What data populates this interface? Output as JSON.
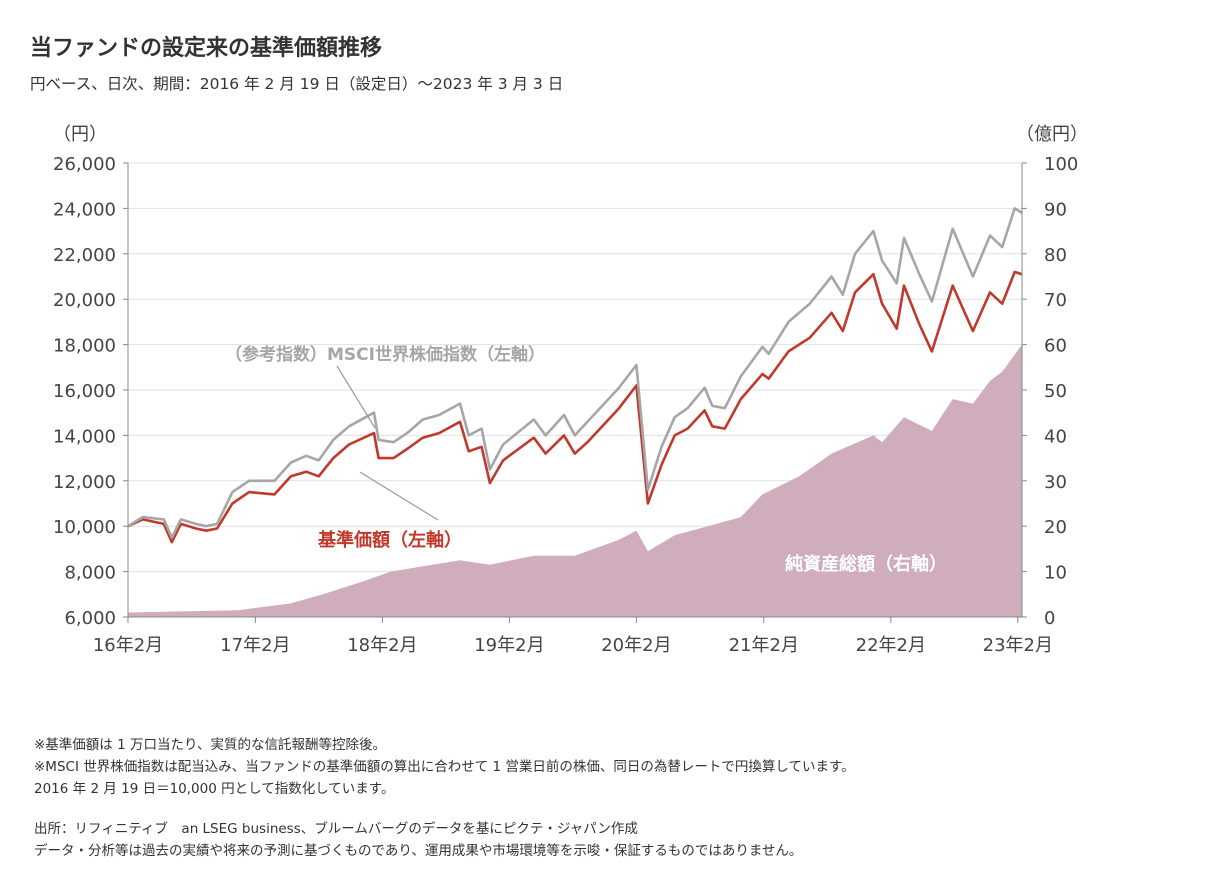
{
  "header": {
    "title": "当ファンドの設定来の基準価額推移",
    "subtitle": "円ベース、日次、期間：2016 年 2 月 19 日（設定日）～2023 年 3 月 3 日"
  },
  "chart_data": {
    "type": "line",
    "left_axis": {
      "unit": "（円）",
      "min": 6000,
      "max": 26000,
      "ticks": [
        "6,000",
        "8,000",
        "10,000",
        "12,000",
        "14,000",
        "16,000",
        "18,000",
        "20,000",
        "22,000",
        "24,000",
        "26,000"
      ]
    },
    "right_axis": {
      "unit": "（億円）",
      "min": 0,
      "max": 100,
      "ticks": [
        "0",
        "10",
        "20",
        "30",
        "40",
        "50",
        "60",
        "70",
        "80",
        "90",
        "100"
      ]
    },
    "x_axis": {
      "min": "2016-02-19",
      "max": "2023-03-03",
      "ticks": [
        "16年2月",
        "17年2月",
        "18年2月",
        "19年2月",
        "20年2月",
        "21年2月",
        "22年2月",
        "23年2月"
      ]
    },
    "grid": "horizontal",
    "series": [
      {
        "name": "基準価額（左軸）",
        "axis": "left",
        "kind": "line",
        "color": "#c0392b",
        "points": [
          [
            "2016-02-19",
            10000
          ],
          [
            "2016-04-01",
            10300
          ],
          [
            "2016-06-01",
            10100
          ],
          [
            "2016-06-24",
            9300
          ],
          [
            "2016-07-20",
            10100
          ],
          [
            "2016-09-01",
            9900
          ],
          [
            "2016-10-01",
            9800
          ],
          [
            "2016-11-01",
            9900
          ],
          [
            "2016-12-15",
            11000
          ],
          [
            "2017-02-01",
            11500
          ],
          [
            "2017-04-15",
            11400
          ],
          [
            "2017-06-01",
            12200
          ],
          [
            "2017-07-15",
            12400
          ],
          [
            "2017-08-20",
            12200
          ],
          [
            "2017-10-01",
            13000
          ],
          [
            "2017-11-15",
            13600
          ],
          [
            "2018-01-26",
            14100
          ],
          [
            "2018-02-08",
            13000
          ],
          [
            "2018-03-23",
            13000
          ],
          [
            "2018-05-01",
            13400
          ],
          [
            "2018-06-15",
            13900
          ],
          [
            "2018-08-01",
            14100
          ],
          [
            "2018-09-30",
            14600
          ],
          [
            "2018-10-25",
            13300
          ],
          [
            "2018-12-01",
            13500
          ],
          [
            "2018-12-25",
            11900
          ],
          [
            "2019-02-01",
            12900
          ],
          [
            "2019-04-30",
            13900
          ],
          [
            "2019-06-03",
            13200
          ],
          [
            "2019-07-26",
            14000
          ],
          [
            "2019-08-26",
            13200
          ],
          [
            "2019-10-01",
            13700
          ],
          [
            "2019-12-31",
            15200
          ],
          [
            "2020-02-19",
            16200
          ],
          [
            "2020-03-23",
            11000
          ],
          [
            "2020-05-01",
            12700
          ],
          [
            "2020-06-08",
            14000
          ],
          [
            "2020-07-15",
            14300
          ],
          [
            "2020-09-02",
            15100
          ],
          [
            "2020-09-24",
            14400
          ],
          [
            "2020-10-30",
            14300
          ],
          [
            "2020-12-15",
            15600
          ],
          [
            "2021-02-15",
            16700
          ],
          [
            "2021-03-05",
            16500
          ],
          [
            "2021-05-01",
            17700
          ],
          [
            "2021-07-01",
            18300
          ],
          [
            "2021-09-02",
            19400
          ],
          [
            "2021-10-04",
            18600
          ],
          [
            "2021-11-08",
            20300
          ],
          [
            "2021-12-31",
            21100
          ],
          [
            "2022-01-25",
            19800
          ],
          [
            "2022-03-08",
            18700
          ],
          [
            "2022-03-29",
            20600
          ],
          [
            "2022-05-12",
            18900
          ],
          [
            "2022-06-17",
            17700
          ],
          [
            "2022-08-16",
            20600
          ],
          [
            "2022-10-13",
            18600
          ],
          [
            "2022-12-01",
            20300
          ],
          [
            "2023-01-05",
            19800
          ],
          [
            "2023-02-10",
            21200
          ],
          [
            "2023-03-03",
            21100
          ]
        ]
      },
      {
        "name": "（参考指数）MSCI世界株価指数（左軸）",
        "axis": "left",
        "kind": "line",
        "color": "#a6a6a6",
        "points": [
          [
            "2016-02-19",
            10000
          ],
          [
            "2016-04-01",
            10400
          ],
          [
            "2016-06-01",
            10300
          ],
          [
            "2016-06-24",
            9500
          ],
          [
            "2016-07-20",
            10300
          ],
          [
            "2016-09-01",
            10100
          ],
          [
            "2016-10-01",
            10000
          ],
          [
            "2016-11-01",
            10100
          ],
          [
            "2016-12-15",
            11500
          ],
          [
            "2017-02-01",
            12000
          ],
          [
            "2017-04-15",
            12000
          ],
          [
            "2017-06-01",
            12800
          ],
          [
            "2017-07-15",
            13100
          ],
          [
            "2017-08-20",
            12900
          ],
          [
            "2017-10-01",
            13800
          ],
          [
            "2017-11-15",
            14400
          ],
          [
            "2018-01-26",
            15000
          ],
          [
            "2018-02-08",
            13800
          ],
          [
            "2018-03-23",
            13700
          ],
          [
            "2018-05-01",
            14100
          ],
          [
            "2018-06-15",
            14700
          ],
          [
            "2018-08-01",
            14900
          ],
          [
            "2018-09-30",
            15400
          ],
          [
            "2018-10-25",
            14000
          ],
          [
            "2018-12-01",
            14300
          ],
          [
            "2018-12-25",
            12500
          ],
          [
            "2019-02-01",
            13600
          ],
          [
            "2019-04-30",
            14700
          ],
          [
            "2019-06-03",
            14000
          ],
          [
            "2019-07-26",
            14900
          ],
          [
            "2019-08-26",
            14000
          ],
          [
            "2019-10-01",
            14600
          ],
          [
            "2019-12-31",
            16100
          ],
          [
            "2020-02-19",
            17100
          ],
          [
            "2020-03-23",
            11600
          ],
          [
            "2020-05-01",
            13500
          ],
          [
            "2020-06-08",
            14800
          ],
          [
            "2020-07-15",
            15200
          ],
          [
            "2020-09-02",
            16100
          ],
          [
            "2020-09-24",
            15300
          ],
          [
            "2020-10-30",
            15200
          ],
          [
            "2020-12-15",
            16600
          ],
          [
            "2021-02-15",
            17900
          ],
          [
            "2021-03-05",
            17600
          ],
          [
            "2021-05-01",
            19000
          ],
          [
            "2021-07-01",
            19800
          ],
          [
            "2021-09-02",
            21000
          ],
          [
            "2021-10-04",
            20200
          ],
          [
            "2021-11-08",
            22000
          ],
          [
            "2021-12-31",
            23000
          ],
          [
            "2022-01-25",
            21700
          ],
          [
            "2022-03-08",
            20700
          ],
          [
            "2022-03-29",
            22700
          ],
          [
            "2022-05-12",
            21100
          ],
          [
            "2022-06-17",
            19900
          ],
          [
            "2022-08-16",
            23100
          ],
          [
            "2022-10-13",
            21000
          ],
          [
            "2022-12-01",
            22800
          ],
          [
            "2023-01-05",
            22300
          ],
          [
            "2023-02-10",
            24000
          ],
          [
            "2023-03-03",
            23800
          ]
        ]
      },
      {
        "name": "純資産総額（右軸）",
        "axis": "right",
        "kind": "area",
        "color": "#cfadbd",
        "points": [
          [
            "2016-02-19",
            1.0
          ],
          [
            "2016-12-31",
            1.5
          ],
          [
            "2017-06-01",
            3.0
          ],
          [
            "2017-09-01",
            5.0
          ],
          [
            "2017-12-31",
            8.0
          ],
          [
            "2018-03-15",
            10.0
          ],
          [
            "2018-06-01",
            11.0
          ],
          [
            "2018-09-30",
            12.5
          ],
          [
            "2018-12-25",
            11.5
          ],
          [
            "2019-04-30",
            13.5
          ],
          [
            "2019-08-26",
            13.5
          ],
          [
            "2019-12-31",
            17.0
          ],
          [
            "2020-02-19",
            19.0
          ],
          [
            "2020-03-23",
            14.5
          ],
          [
            "2020-06-08",
            18.0
          ],
          [
            "2020-12-15",
            22.0
          ],
          [
            "2021-02-15",
            27.0
          ],
          [
            "2021-06-01",
            31.0
          ],
          [
            "2021-09-02",
            36.0
          ],
          [
            "2021-12-31",
            40.0
          ],
          [
            "2022-01-25",
            38.5
          ],
          [
            "2022-03-29",
            44.0
          ],
          [
            "2022-06-17",
            41.0
          ],
          [
            "2022-08-16",
            48.0
          ],
          [
            "2022-10-13",
            47.0
          ],
          [
            "2022-12-01",
            52.0
          ],
          [
            "2023-01-05",
            54.0
          ],
          [
            "2023-03-03",
            60.0
          ]
        ]
      }
    ],
    "annotations": [
      "（参考指数）MSCI世界株価指数（左軸）",
      "基準価額（左軸）",
      "純資産総額（右軸）"
    ]
  },
  "notes": [
    "※基準価額は 1 万口当たり、実質的な信託報酬等控除後。",
    "※MSCI 世界株価指数は配当込み、当ファンドの基準価額の算出に合わせて 1 営業日前の株価、同日の為替レートで円換算しています。",
    "2016 年 2 月 19 日＝10,000 円として指数化しています。"
  ],
  "source": [
    "出所：リフィニティブ　an LSEG business、ブルームバーグのデータを基にピクテ・ジャパン作成",
    "データ・分析等は過去の実績や将来の予測に基づくものであり、運用成果や市場環境等を示唆・保証するものではありません。"
  ]
}
